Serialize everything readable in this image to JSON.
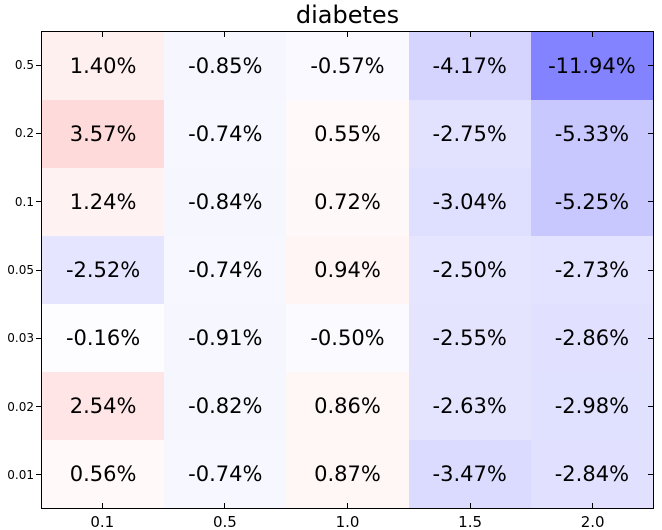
{
  "chart_data": {
    "type": "heatmap",
    "title": "diabetes",
    "xlabel": "",
    "ylabel": "",
    "x_tick_labels": [
      "0.1",
      "0.5",
      "1.0",
      "1.5",
      "2.0"
    ],
    "y_tick_labels": [
      "0.5",
      "0.2",
      "0.1",
      "0.05",
      "0.03",
      "0.02",
      "0.01"
    ],
    "rows": [
      [
        1.4,
        -0.85,
        -0.57,
        -4.17,
        -11.94
      ],
      [
        3.57,
        -0.74,
        0.55,
        -2.75,
        -5.33
      ],
      [
        1.24,
        -0.84,
        0.72,
        -3.04,
        -5.25
      ],
      [
        -2.52,
        -0.74,
        0.94,
        -2.5,
        -2.73
      ],
      [
        -0.16,
        -0.91,
        -0.5,
        -2.55,
        -2.86
      ],
      [
        2.54,
        -0.82,
        0.86,
        -2.63,
        -2.98
      ],
      [
        0.56,
        -0.74,
        0.87,
        -3.47,
        -2.84
      ]
    ],
    "value_unit": "%",
    "value_decimals": 2,
    "colormap": {
      "style": "blue-white-red",
      "negative_end": "#0000ff",
      "zero_color": "#ffffff",
      "positive_end": "#ff0000",
      "abs_range": 24.5
    },
    "layout_hints": {
      "grid": false,
      "legend": false,
      "frame_color": "#000000",
      "background": "#ffffff",
      "x_tick_direction": "in",
      "y_tick_direction_left": "out",
      "y_tick_direction_right": "in"
    }
  }
}
